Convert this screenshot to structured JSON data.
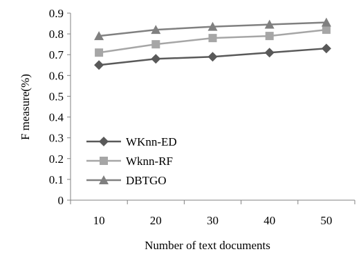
{
  "chart_data": {
    "type": "line",
    "title": "",
    "xlabel": "Number of text documents",
    "ylabel": "F measure(%)",
    "categories": [
      "10",
      "20",
      "30",
      "40",
      "50"
    ],
    "y_ticks": [
      "0",
      "0.1",
      "0.2",
      "0.3",
      "0.4",
      "0.5",
      "0.6",
      "0.7",
      "0.8",
      "0.9"
    ],
    "ylim": [
      0,
      0.9
    ],
    "grid": false,
    "legend_position": "bottom-left",
    "series": [
      {
        "name": "WKnn-ED",
        "marker": "diamond",
        "color": "#595959",
        "values": [
          0.65,
          0.68,
          0.69,
          0.71,
          0.73
        ]
      },
      {
        "name": "Wknn-RF",
        "marker": "square",
        "color": "#a6a6a6",
        "values": [
          0.71,
          0.75,
          0.78,
          0.79,
          0.82
        ]
      },
      {
        "name": "DBTGO",
        "marker": "triangle",
        "color": "#808080",
        "values": [
          0.79,
          0.82,
          0.835,
          0.845,
          0.855
        ]
      }
    ]
  }
}
